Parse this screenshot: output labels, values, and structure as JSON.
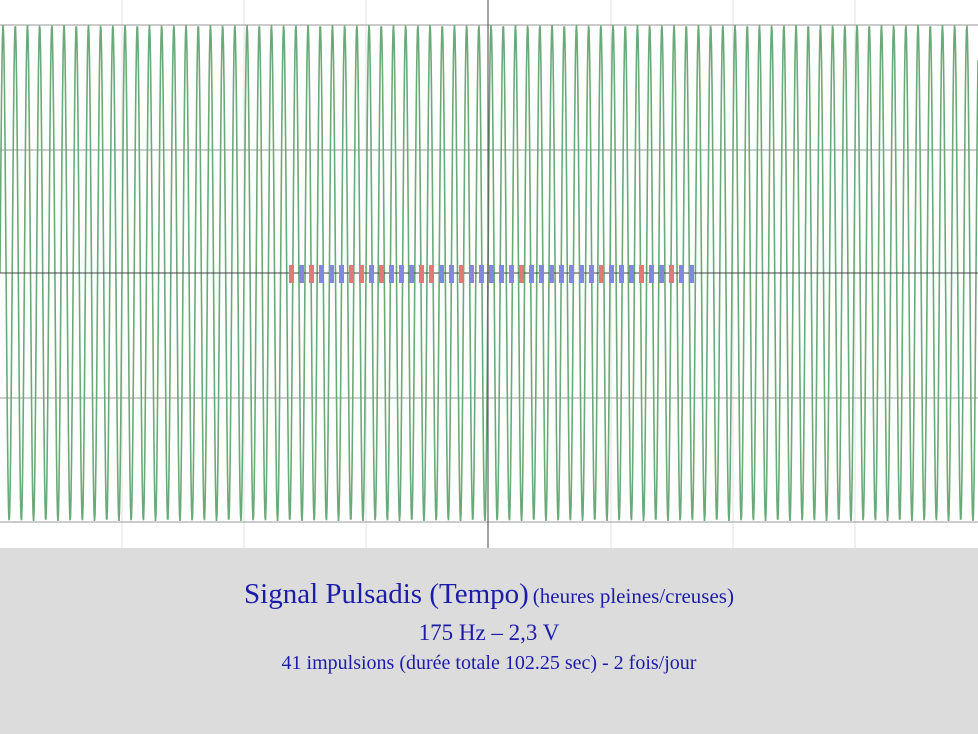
{
  "caption": {
    "title": "Signal Pulsadis (Tempo)",
    "subtitle": "(heures pleines/creuses)",
    "line2": "175 Hz – 2,3 V",
    "line3": "41 impulsions (durée totale 102.25 sec) - 2 fois/jour"
  }
}
